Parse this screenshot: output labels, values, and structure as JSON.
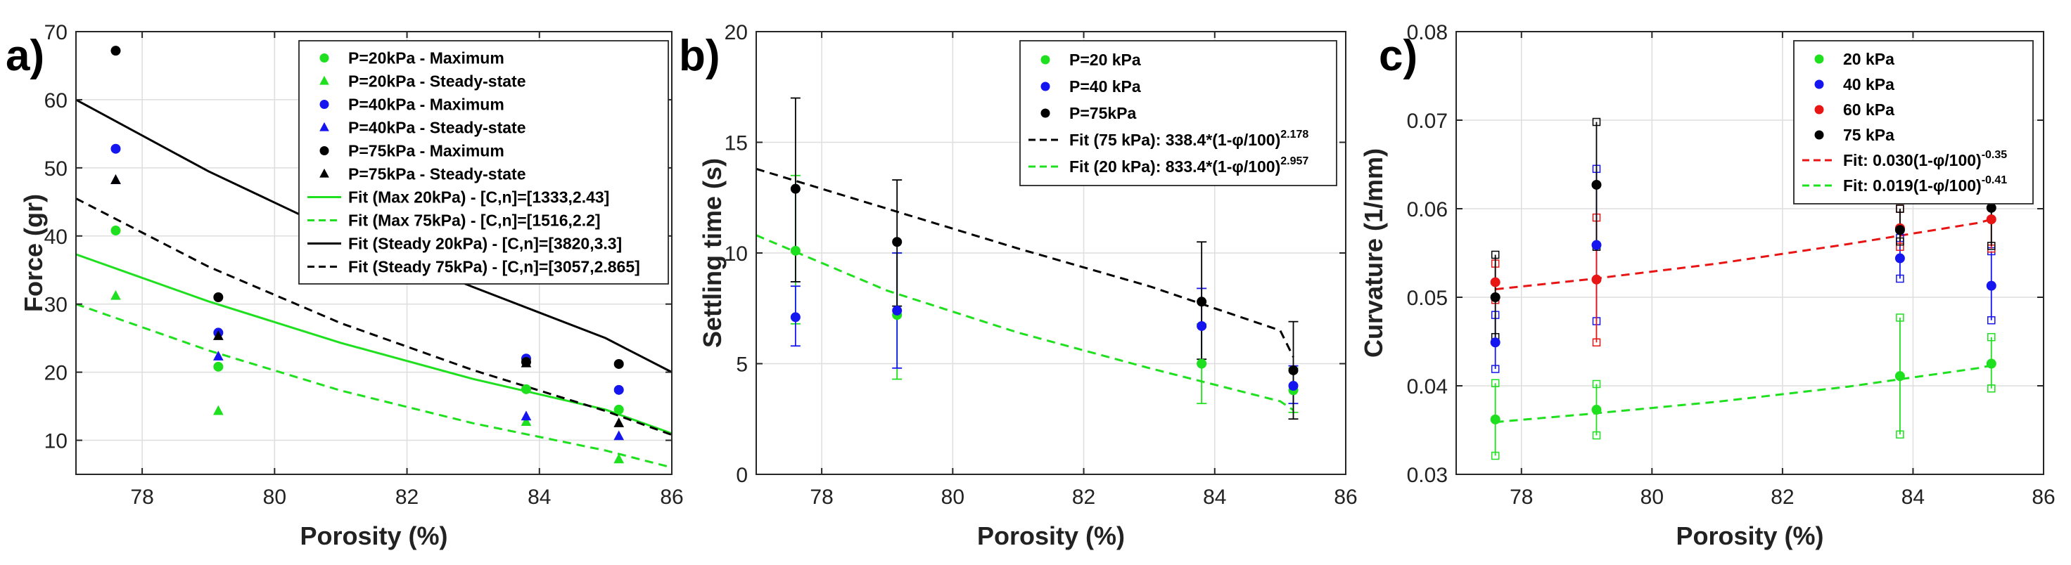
{
  "chart_data": [
    {
      "panel": "a)",
      "type": "scatter",
      "xlabel": "Porosity (%)",
      "ylabel": "Force (gr)",
      "xlim": [
        77,
        86
      ],
      "ylim": [
        5,
        70
      ],
      "xticks": [
        "78",
        "80",
        "82",
        "84",
        "86"
      ],
      "xtick_values": [
        78,
        80,
        82,
        84,
        86
      ],
      "yticks": [
        "10",
        "20",
        "30",
        "40",
        "50",
        "60",
        "70"
      ],
      "ytick_values": [
        10,
        20,
        30,
        40,
        50,
        60,
        70
      ],
      "grid": true,
      "legend_position": "top-right",
      "series": [
        {
          "name": "P=20kPa - Maximum",
          "kind": "points",
          "marker": "circle",
          "color": "#1fe01f",
          "x": [
            77.6,
            79.15,
            83.8,
            85.2
          ],
          "y": [
            40.8,
            20.8,
            17.5,
            14.5
          ]
        },
        {
          "name": "P=20kPa - Steady-state",
          "kind": "points",
          "marker": "triangle",
          "color": "#1fe01f",
          "x": [
            77.6,
            79.15,
            83.8,
            85.2
          ],
          "y": [
            31.2,
            14.3,
            12.7,
            7.2
          ]
        },
        {
          "name": "P=40kPa - Maximum",
          "kind": "points",
          "marker": "circle",
          "color": "#1515f0",
          "x": [
            77.6,
            79.15,
            83.8,
            85.2
          ],
          "y": [
            52.8,
            25.8,
            22.0,
            17.4
          ]
        },
        {
          "name": "P=40kPa - Steady-state",
          "kind": "points",
          "marker": "triangle",
          "color": "#1515f0",
          "x": [
            77.6,
            79.15,
            83.8,
            85.2
          ],
          "y": [
            48.2,
            22.3,
            13.5,
            10.6
          ]
        },
        {
          "name": "P=75kPa - Maximum",
          "kind": "points",
          "marker": "circle",
          "color": "#000000",
          "x": [
            77.6,
            79.15,
            83.8,
            85.2
          ],
          "y": [
            67.2,
            31.0,
            21.5,
            21.2
          ]
        },
        {
          "name": "P=75kPa - Steady-state",
          "kind": "points",
          "marker": "triangle",
          "color": "#000000",
          "x": [
            77.6,
            79.15,
            83.8,
            85.2
          ],
          "y": [
            48.2,
            25.3,
            21.3,
            12.5
          ]
        },
        {
          "name": "Fit (Max 20kPa) - [C,n]=[1333,2.43]",
          "kind": "line",
          "dash": "solid",
          "color": "#1fe01f",
          "x": [
            77,
            79,
            81,
            83,
            85,
            86
          ],
          "y": [
            37.3,
            30.4,
            24.3,
            19.0,
            14.5,
            11.0
          ]
        },
        {
          "name": "Fit (Max 75kPa) - [C,n]=[1516,2.2]",
          "kind": "line",
          "dash": "dashed",
          "color": "#1fe01f",
          "x": [
            77,
            79,
            81,
            83,
            85,
            86
          ],
          "y": [
            30.0,
            23.2,
            17.3,
            12.5,
            8.5,
            6.0
          ]
        },
        {
          "name": "Fit (Steady 20kPa) - [C,n]=[3820,3.3]",
          "kind": "line",
          "dash": "solid",
          "color": "#000000",
          "x": [
            77,
            79,
            81,
            83,
            85,
            86
          ],
          "y": [
            60.0,
            49.5,
            40.3,
            32.5,
            25.0,
            20.0
          ]
        },
        {
          "name": "Fit (Steady 75kPa) - [C,n]=[3057,2.865]",
          "kind": "line",
          "dash": "dashed",
          "color": "#000000",
          "x": [
            77,
            79,
            81,
            83,
            85,
            86
          ],
          "y": [
            45.5,
            35.5,
            27.2,
            20.3,
            14.3,
            10.8
          ]
        }
      ]
    },
    {
      "panel": "b)",
      "type": "scatter",
      "xlabel": "Porosity (%)",
      "ylabel": "Settling time (s)",
      "xlim": [
        77,
        86
      ],
      "ylim": [
        0,
        20
      ],
      "xticks": [
        "78",
        "80",
        "82",
        "84",
        "86"
      ],
      "xtick_values": [
        78,
        80,
        82,
        84,
        86
      ],
      "yticks": [
        "0",
        "5",
        "10",
        "15",
        "20"
      ],
      "ytick_values": [
        0,
        5,
        10,
        15,
        20
      ],
      "grid": true,
      "legend_position": "top-right",
      "series": [
        {
          "name": "P=20 kPa",
          "kind": "points",
          "marker": "circle",
          "color": "#1fe01f",
          "x": [
            77.6,
            79.15,
            83.8,
            85.2
          ],
          "y": [
            10.1,
            7.2,
            5.0,
            3.8
          ],
          "err_low": [
            6.8,
            4.3,
            3.2,
            2.8
          ],
          "err_high": [
            13.5,
            10.0,
            6.8,
            4.8
          ]
        },
        {
          "name": "P=40 kPa",
          "kind": "points",
          "marker": "circle",
          "color": "#1515f0",
          "x": [
            77.6,
            79.15,
            83.8,
            85.2
          ],
          "y": [
            7.1,
            7.4,
            6.7,
            4.0
          ],
          "err_low": [
            5.8,
            4.8,
            5.0,
            3.2
          ],
          "err_high": [
            8.5,
            10.0,
            8.4,
            4.9
          ]
        },
        {
          "name": "P=75kPa",
          "kind": "points",
          "marker": "circle",
          "color": "#000000",
          "x": [
            77.6,
            79.15,
            83.8,
            85.2
          ],
          "y": [
            12.9,
            10.5,
            7.8,
            4.7
          ],
          "err_low": [
            8.7,
            7.6,
            5.2,
            2.5
          ],
          "err_high": [
            17.0,
            13.3,
            10.5,
            6.9
          ]
        },
        {
          "name": "Fit (75 kPa): 338.4*(1-φ/100)",
          "superscript": "2.178",
          "kind": "line",
          "dash": "dashed",
          "color": "#000000",
          "x": [
            77,
            79,
            81,
            83,
            85,
            85.2
          ],
          "y": [
            13.8,
            12.0,
            10.2,
            8.5,
            6.5,
            5.3
          ]
        },
        {
          "name": "Fit (20 kPa): 833.4*(1-φ/100)",
          "superscript": "2.957",
          "kind": "line",
          "dash": "dashed",
          "color": "#1fe01f",
          "x": [
            77,
            79,
            81,
            83,
            85,
            85.2
          ],
          "y": [
            10.8,
            8.3,
            6.4,
            4.8,
            3.3,
            2.9
          ]
        }
      ]
    },
    {
      "panel": "c)",
      "type": "scatter",
      "xlabel": "Porosity (%)",
      "ylabel": "Curvature (1/mm)",
      "xlim": [
        77,
        86
      ],
      "ylim": [
        0.03,
        0.08
      ],
      "xticks": [
        "78",
        "80",
        "82",
        "84",
        "86"
      ],
      "xtick_values": [
        78,
        80,
        82,
        84,
        86
      ],
      "yticks": [
        "0.03",
        "0.04",
        "0.05",
        "0.06",
        "0.07",
        "0.08"
      ],
      "ytick_values": [
        0.03,
        0.04,
        0.05,
        0.06,
        0.07,
        0.08
      ],
      "grid": true,
      "legend_position": "top-right",
      "series": [
        {
          "name": "20 kPa",
          "kind": "points",
          "marker": "circle",
          "color": "#1fe01f",
          "x": [
            77.6,
            79.15,
            83.8,
            85.2
          ],
          "y": [
            0.0362,
            0.0373,
            0.0411,
            0.0425
          ],
          "err_low": [
            0.0321,
            0.0344,
            0.0345,
            0.0397
          ],
          "err_high": [
            0.0403,
            0.0402,
            0.0477,
            0.0455
          ]
        },
        {
          "name": "40 kPa",
          "kind": "points",
          "marker": "circle",
          "color": "#1515f0",
          "x": [
            77.6,
            79.15,
            83.8,
            85.2
          ],
          "y": [
            0.0449,
            0.0559,
            0.0544,
            0.0513
          ],
          "err_low": [
            0.0419,
            0.0473,
            0.0521,
            0.0474
          ],
          "err_high": [
            0.048,
            0.0645,
            0.0567,
            0.0552
          ]
        },
        {
          "name": "60 kPa",
          "kind": "points",
          "marker": "circle",
          "color": "#e81515",
          "x": [
            77.6,
            79.15,
            83.8,
            85.2
          ],
          "y": [
            0.0517,
            0.052,
            0.0578,
            0.0588
          ],
          "err_low": [
            0.0497,
            0.0449,
            0.0557,
            0.0555
          ],
          "err_high": [
            0.0538,
            0.059,
            0.06,
            0.062
          ]
        },
        {
          "name": "75 kPa",
          "kind": "points",
          "marker": "circle",
          "color": "#000000",
          "x": [
            77.6,
            79.15,
            83.8,
            85.2
          ],
          "y": [
            0.05,
            0.0627,
            0.0576,
            0.0601
          ],
          "err_low": [
            0.0455,
            0.0557,
            0.0563,
            0.0558
          ],
          "err_high": [
            0.0548,
            0.0698,
            0.06,
            0.062
          ]
        },
        {
          "name": "Fit: 0.030(1-φ/100)",
          "superscript": "-0.35",
          "kind": "line",
          "dash": "dashed",
          "color": "#e81515",
          "x": [
            77.6,
            79,
            81,
            83,
            85,
            85.2
          ],
          "y": [
            0.0509,
            0.052,
            0.0538,
            0.056,
            0.0584,
            0.0588
          ]
        },
        {
          "name": "Fit: 0.019(1-φ/100)",
          "superscript": "-0.41",
          "kind": "line",
          "dash": "dashed",
          "color": "#1fe01f",
          "x": [
            77.6,
            79,
            81,
            83,
            85,
            85.2
          ],
          "y": [
            0.0359,
            0.0368,
            0.0382,
            0.0399,
            0.042,
            0.0423
          ]
        }
      ]
    }
  ]
}
